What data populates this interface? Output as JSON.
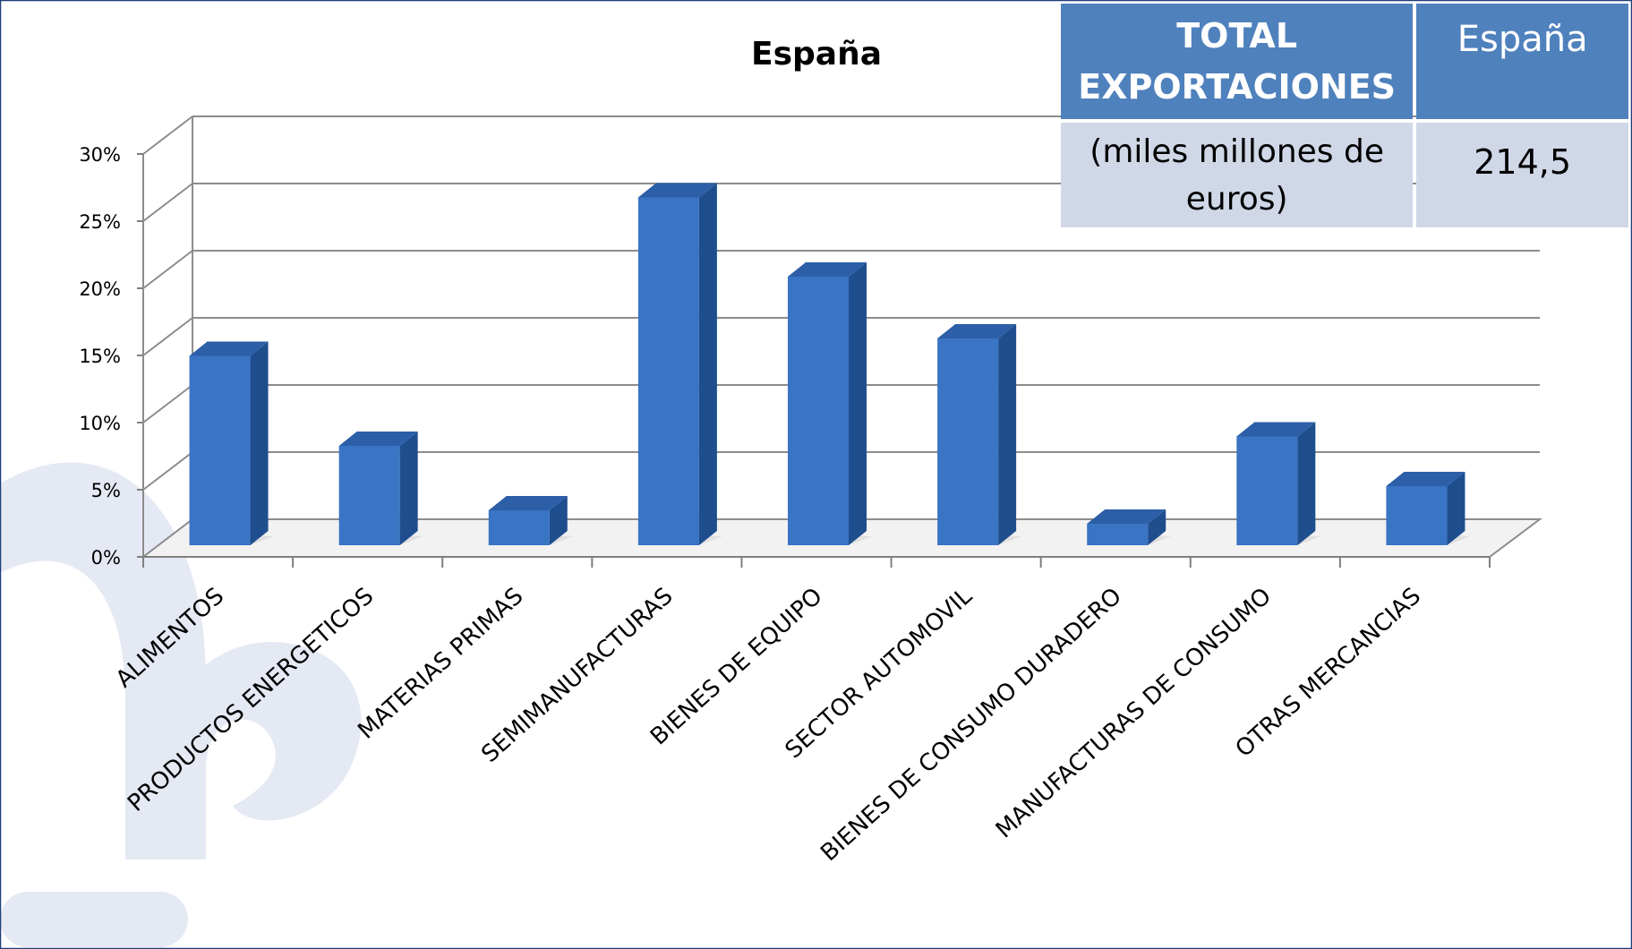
{
  "colors": {
    "bar_front": "#3a74c4",
    "bar_side": "#1f4e8f",
    "bar_top": "#2d5fa8",
    "table_header": "#4f81bd",
    "table_body": "#d0d8e8",
    "watermark": "#e5e9f4",
    "frame": "#1f3f7a"
  },
  "chart_data": {
    "type": "bar",
    "title": "España",
    "xlabel": "",
    "ylabel": "",
    "ylim": [
      0,
      30
    ],
    "yticks": [
      "0%",
      "5%",
      "10%",
      "15%",
      "20%",
      "25%",
      "30%"
    ],
    "grid": true,
    "categories": [
      "ALIMENTOS",
      "PRODUCTOS ENERGETICOS",
      "MATERIAS PRIMAS",
      "SEMIMANUFACTURAS",
      "BIENES DE EQUIPO",
      "SECTOR AUTOMOVIL",
      "BIENES DE CONSUMO DURADERO",
      "MANUFACTURAS DE CONSUMO",
      "OTRAS MERCANCIAS"
    ],
    "values": [
      14.1,
      7.4,
      2.6,
      25.9,
      20.0,
      15.4,
      1.6,
      8.1,
      4.4
    ]
  },
  "table": {
    "header_label": "TOTAL EXPORTACIONES",
    "header_country": "España",
    "unit_label": "(miles millones de euros)",
    "value": "214,5"
  }
}
